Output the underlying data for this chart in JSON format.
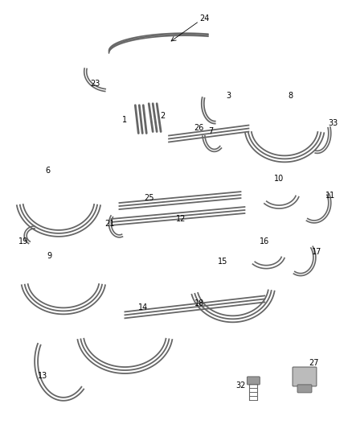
{
  "bg_color": "#ffffff",
  "color_dark": "#666666",
  "color_mid": "#999999",
  "color_light": "#bbbbbb",
  "label_fontsize": 7
}
